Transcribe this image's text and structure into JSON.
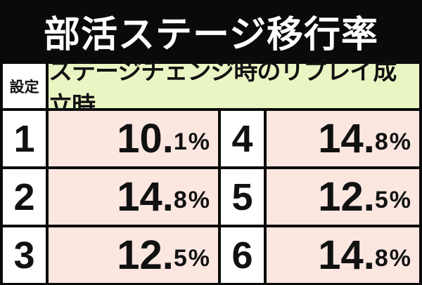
{
  "title": "部活ステージ移行率",
  "table": {
    "setting_header": "設定",
    "condition_header": "ステージチェンジ時のリプレイ成立時",
    "rows": [
      {
        "left_setting": "1",
        "left_int": "10",
        "left_dec": ".",
        "left_frac": "1",
        "left_unit": "%",
        "right_setting": "4",
        "right_int": "14",
        "right_dec": ".",
        "right_frac": "8",
        "right_unit": "%"
      },
      {
        "left_setting": "2",
        "left_int": "14",
        "left_dec": ".",
        "left_frac": "8",
        "left_unit": "%",
        "right_setting": "5",
        "right_int": "12",
        "right_dec": ".",
        "right_frac": "5",
        "right_unit": "%"
      },
      {
        "left_setting": "3",
        "left_int": "12",
        "left_dec": ".",
        "left_frac": "5",
        "left_unit": "%",
        "right_setting": "6",
        "right_int": "14",
        "right_dec": ".",
        "right_frac": "8",
        "right_unit": "%"
      }
    ]
  },
  "colors": {
    "background": "#0a0a0a",
    "header_condition_bg": "#eaf5c4",
    "value_bg": "#fbe6e0",
    "setting_bg": "#ffffff"
  }
}
